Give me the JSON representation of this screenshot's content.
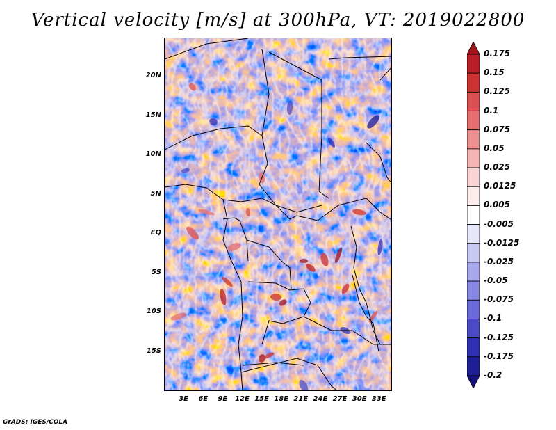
{
  "title": "Vertical velocity [m/s] at 300hPa, VT: 2019022800",
  "credit": "GrADS: IGES/COLA",
  "map": {
    "lat_labels": [
      "20N",
      "15N",
      "10N",
      "5N",
      "EQ",
      "5S",
      "10S",
      "15S"
    ],
    "lat_values": [
      20,
      15,
      10,
      5,
      0,
      -5,
      -10,
      -15
    ],
    "lon_labels": [
      "3E",
      "6E",
      "9E",
      "12E",
      "15E",
      "18E",
      "21E",
      "24E",
      "27E",
      "30E",
      "33E"
    ],
    "lon_values": [
      3,
      6,
      9,
      12,
      15,
      18,
      21,
      24,
      27,
      30,
      33
    ],
    "lon_range": [
      0,
      35
    ],
    "lat_range": [
      -20,
      25
    ]
  },
  "colorbar": {
    "levels": [
      "0.175",
      "0.15",
      "0.125",
      "0.1",
      "0.075",
      "0.05",
      "0.025",
      "0.0125",
      "0.005",
      "-0.005",
      "-0.0125",
      "-0.025",
      "-0.05",
      "-0.075",
      "-0.1",
      "-0.125",
      "-0.175",
      "-0.2"
    ],
    "colors": [
      "#a0141c",
      "#b81e26",
      "#cc3333",
      "#dc4f4f",
      "#e56d6d",
      "#ee8f8f",
      "#f5b3b3",
      "#fad4d4",
      "#fdecec",
      "#ffffff",
      "#e6e6fa",
      "#c8c8f4",
      "#a8a8ee",
      "#8787e6",
      "#6a6ad8",
      "#4b4bc8",
      "#3030b4",
      "#1e1e96",
      "#14147a"
    ],
    "blue_main": "#7878e0",
    "red_main": "#e07878"
  }
}
